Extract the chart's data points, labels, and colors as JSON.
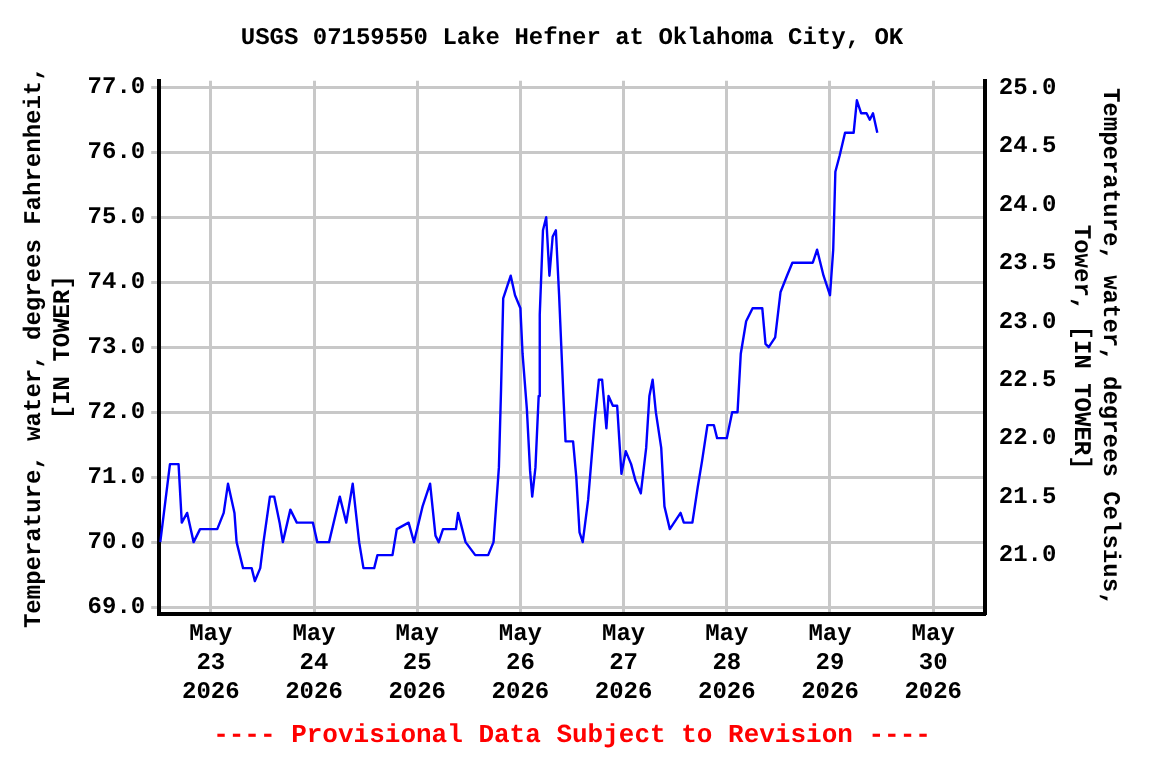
{
  "chart_data": {
    "type": "line",
    "title": "USGS 07159550 Lake Hefner at Oklahoma City, OK",
    "ylabel": "Temperature, water, degrees Fahrenheit, [IN TOWER]",
    "y2label": "Temperature, water, degrees Celsius, Tower, [IN TOWER]",
    "annotations": [
      "---- Provisional Data Subject to Revision ----"
    ],
    "xlim": [
      "2026-05-22T12:00",
      "2026-05-30T12:00"
    ],
    "xticks": [
      {
        "value": "2026-05-23",
        "label": "May 23 2026"
      },
      {
        "value": "2026-05-24",
        "label": "May 24 2026"
      },
      {
        "value": "2026-05-25",
        "label": "May 25 2026"
      },
      {
        "value": "2026-05-26",
        "label": "May 26 2026"
      },
      {
        "value": "2026-05-27",
        "label": "May 27 2026"
      },
      {
        "value": "2026-05-28",
        "label": "May 28 2026"
      },
      {
        "value": "2026-05-29",
        "label": "May 29 2026"
      },
      {
        "value": "2026-05-30",
        "label": "May 30 2026"
      }
    ],
    "ylim": [
      68.9,
      77.1
    ],
    "yticks": [
      {
        "value": 69,
        "label": "69.0"
      },
      {
        "value": 70,
        "label": "70.0"
      },
      {
        "value": 71,
        "label": "71.0"
      },
      {
        "value": 72,
        "label": "72.0"
      },
      {
        "value": 73,
        "label": "73.0"
      },
      {
        "value": 74,
        "label": "74.0"
      },
      {
        "value": 75,
        "label": "75.0"
      },
      {
        "value": 76,
        "label": "76.0"
      },
      {
        "value": 77,
        "label": "77.0"
      }
    ],
    "y2lim": [
      20.5,
      25.06
    ],
    "y2ticks": [
      {
        "value": 21,
        "label": "21.0"
      },
      21.5,
      {
        "value": 22,
        "label": "22.0"
      },
      22.5,
      {
        "value": 23,
        "label": "23.0"
      },
      23.5,
      {
        "value": 24,
        "label": "24.0"
      },
      24.5,
      {
        "value": 25,
        "label": "25.0"
      }
    ],
    "grid": true,
    "legend": false,
    "marker": "none",
    "line_style": "solid",
    "series": [
      {
        "color": "#0000ff",
        "x": [
          "2026-05-22T12:15",
          "2026-05-22T14:30",
          "2026-05-22T16:30",
          "2026-05-22T17:15",
          "2026-05-22T18:30",
          "2026-05-22T20:00",
          "2026-05-22T21:30",
          "2026-05-23T01:30",
          "2026-05-23T03:00",
          "2026-05-23T04:00",
          "2026-05-23T05:30",
          "2026-05-23T06:00",
          "2026-05-23T07:30",
          "2026-05-23T09:30",
          "2026-05-23T10:15",
          "2026-05-23T11:30",
          "2026-05-23T12:15",
          "2026-05-23T13:45",
          "2026-05-23T14:45",
          "2026-05-23T16:00",
          "2026-05-23T16:45",
          "2026-05-23T18:30",
          "2026-05-23T20:00",
          "2026-05-23T23:45",
          "2026-05-24T00:45",
          "2026-05-24T03:30",
          "2026-05-24T06:00",
          "2026-05-24T07:30",
          "2026-05-24T09:00",
          "2026-05-24T10:30",
          "2026-05-24T11:30",
          "2026-05-24T14:00",
          "2026-05-24T14:45",
          "2026-05-24T18:15",
          "2026-05-24T19:15",
          "2026-05-24T22:00",
          "2026-05-24T23:15",
          "2026-05-25T01:15",
          "2026-05-25T03:00",
          "2026-05-25T04:15",
          "2026-05-25T05:00",
          "2026-05-25T06:00",
          "2026-05-25T09:00",
          "2026-05-25T09:30",
          "2026-05-25T11:15",
          "2026-05-25T13:30",
          "2026-05-25T16:30",
          "2026-05-25T17:45",
          "2026-05-25T19:00",
          "2026-05-25T19:30",
          "2026-05-25T20:00",
          "2026-05-25T21:00",
          "2026-05-25T21:45",
          "2026-05-25T22:45",
          "2026-05-26T00:00",
          "2026-05-26T00:30",
          "2026-05-26T01:30",
          "2026-05-26T02:15",
          "2026-05-26T02:45",
          "2026-05-26T03:30",
          "2026-05-26T04:15",
          "2026-05-26T04:30",
          "2026-05-26T05:15",
          "2026-05-26T06:00",
          "2026-05-26T06:45",
          "2026-05-26T07:30",
          "2026-05-26T08:15",
          "2026-05-26T09:00",
          "2026-05-26T10:00",
          "2026-05-26T10:30",
          "2026-05-26T12:15",
          "2026-05-26T13:00",
          "2026-05-26T13:45",
          "2026-05-26T14:30",
          "2026-05-26T15:45",
          "2026-05-26T17:15",
          "2026-05-26T18:15",
          "2026-05-26T19:00",
          "2026-05-26T20:00",
          "2026-05-26T20:30",
          "2026-05-26T21:30",
          "2026-05-26T22:30",
          "2026-05-26T23:30",
          "2026-05-27T00:30",
          "2026-05-27T01:45",
          "2026-05-27T02:45",
          "2026-05-27T04:00",
          "2026-05-27T05:15",
          "2026-05-27T06:00",
          "2026-05-27T06:45",
          "2026-05-27T07:30",
          "2026-05-27T08:45",
          "2026-05-27T09:30",
          "2026-05-27T10:45",
          "2026-05-27T11:45",
          "2026-05-27T13:15",
          "2026-05-27T14:00",
          "2026-05-27T16:00",
          "2026-05-27T17:15",
          "2026-05-27T18:15",
          "2026-05-27T19:30",
          "2026-05-27T21:00",
          "2026-05-27T21:45",
          "2026-05-28T00:00",
          "2026-05-28T01:15",
          "2026-05-28T02:30",
          "2026-05-28T03:15",
          "2026-05-28T04:30",
          "2026-05-28T06:00",
          "2026-05-28T08:15",
          "2026-05-28T09:00",
          "2026-05-28T09:45",
          "2026-05-28T11:15",
          "2026-05-28T12:30",
          "2026-05-28T14:00",
          "2026-05-28T15:15",
          "2026-05-28T20:00",
          "2026-05-28T21:00",
          "2026-05-28T22:30",
          "2026-05-29T00:00",
          "2026-05-29T00:45",
          "2026-05-29T01:15",
          "2026-05-29T02:15",
          "2026-05-29T03:30",
          "2026-05-29T05:30",
          "2026-05-29T06:15",
          "2026-05-29T07:15",
          "2026-05-29T08:30",
          "2026-05-29T09:15",
          "2026-05-29T10:00",
          "2026-05-29T11:00"
        ],
        "values": [
          70.0,
          71.2,
          71.2,
          70.3,
          70.45,
          70.0,
          70.2,
          70.2,
          70.45,
          70.9,
          70.45,
          70.0,
          69.6,
          69.6,
          69.4,
          69.6,
          70.0,
          70.7,
          70.7,
          70.3,
          70.0,
          70.5,
          70.3,
          70.3,
          70.0,
          70.0,
          70.7,
          70.3,
          70.9,
          70.0,
          69.6,
          69.6,
          69.8,
          69.8,
          70.2,
          70.3,
          70.0,
          70.55,
          70.9,
          70.1,
          70.0,
          70.2,
          70.2,
          70.45,
          70.0,
          69.8,
          69.8,
          70.0,
          71.15,
          72.35,
          73.75,
          73.95,
          74.1,
          73.8,
          73.6,
          72.9,
          72.05,
          71.1,
          70.7,
          71.15,
          72.25,
          73.5,
          74.8,
          75.0,
          74.1,
          74.7,
          74.8,
          73.8,
          72.25,
          71.55,
          71.55,
          71.0,
          70.15,
          70.0,
          70.65,
          71.85,
          72.5,
          72.5,
          71.75,
          72.25,
          72.1,
          72.1,
          71.05,
          71.4,
          71.2,
          70.95,
          70.75,
          71.45,
          72.25,
          72.5,
          72.0,
          71.45,
          70.55,
          70.2,
          70.3,
          70.45,
          70.3,
          70.3,
          70.85,
          71.25,
          71.8,
          71.8,
          71.6,
          71.6,
          72.0,
          72.0,
          72.9,
          73.4,
          73.6,
          73.6,
          73.05,
          73.0,
          73.15,
          73.85,
          74.1,
          74.3,
          74.3,
          74.5,
          74.1,
          73.8,
          74.5,
          75.7,
          75.95,
          76.3,
          76.3,
          76.8,
          76.6,
          76.6,
          76.5,
          76.6,
          76.3
        ]
      }
    ]
  }
}
